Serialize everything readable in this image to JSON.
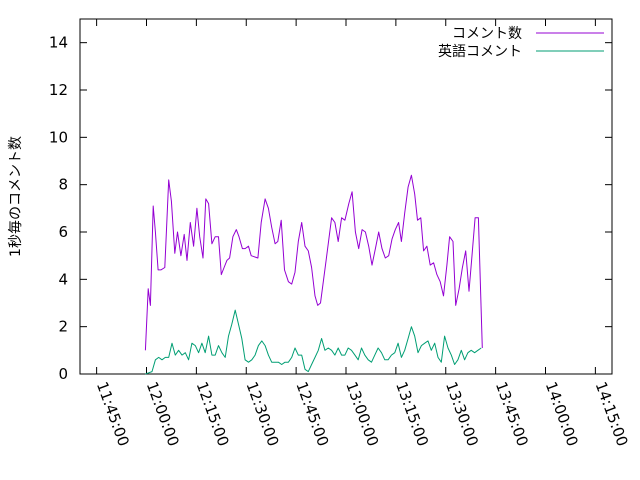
{
  "chart_data": {
    "type": "line",
    "title": "",
    "xlabel": "",
    "ylabel": "1秒毎のコメント数",
    "ylim": [
      0,
      15
    ],
    "yticks": [
      0,
      2,
      4,
      6,
      8,
      10,
      12,
      14
    ],
    "xlim": [
      "11:40:00",
      "14:20:00"
    ],
    "xticks": [
      "11:45:00",
      "12:00:00",
      "12:15:00",
      "12:30:00",
      "12:45:00",
      "13:00:00",
      "13:15:00",
      "13:30:00",
      "13:45:00",
      "14:00:00",
      "14:15:00"
    ],
    "legend_position": "top-right",
    "grid": false,
    "series": [
      {
        "name": "コメント数",
        "color": "#9400d3",
        "points": [
          [
            "11:59:40",
            1.0
          ],
          [
            "12:00:30",
            3.6
          ],
          [
            "12:01:10",
            2.9
          ],
          [
            "12:02:00",
            7.1
          ],
          [
            "12:02:40",
            6.0
          ],
          [
            "12:03:30",
            4.4
          ],
          [
            "12:04:20",
            4.4
          ],
          [
            "12:05:30",
            4.5
          ],
          [
            "12:06:40",
            8.2
          ],
          [
            "12:07:30",
            7.3
          ],
          [
            "12:08:30",
            5.1
          ],
          [
            "12:09:20",
            6.0
          ],
          [
            "12:10:20",
            5.0
          ],
          [
            "12:11:20",
            5.9
          ],
          [
            "12:12:10",
            4.8
          ],
          [
            "12:13:10",
            6.4
          ],
          [
            "12:14:10",
            5.4
          ],
          [
            "12:15:10",
            7.0
          ],
          [
            "12:16:00",
            5.8
          ],
          [
            "12:17:00",
            4.9
          ],
          [
            "12:17:50",
            7.4
          ],
          [
            "12:18:40",
            7.2
          ],
          [
            "12:19:40",
            5.5
          ],
          [
            "12:20:40",
            5.8
          ],
          [
            "12:21:40",
            5.8
          ],
          [
            "12:22:30",
            4.2
          ],
          [
            "12:23:20",
            4.5
          ],
          [
            "12:24:10",
            4.8
          ],
          [
            "12:25:00",
            4.9
          ],
          [
            "12:26:00",
            5.8
          ],
          [
            "12:27:00",
            6.1
          ],
          [
            "12:27:50",
            5.8
          ],
          [
            "12:28:50",
            5.3
          ],
          [
            "12:29:40",
            5.3
          ],
          [
            "12:30:40",
            5.4
          ],
          [
            "12:31:30",
            5.0
          ],
          [
            "12:33:30",
            4.9
          ],
          [
            "12:34:30",
            6.4
          ],
          [
            "12:35:40",
            7.4
          ],
          [
            "12:36:40",
            7.0
          ],
          [
            "12:37:40",
            6.2
          ],
          [
            "12:38:40",
            5.5
          ],
          [
            "12:39:30",
            5.6
          ],
          [
            "12:40:30",
            6.5
          ],
          [
            "12:41:30",
            4.4
          ],
          [
            "12:42:40",
            3.9
          ],
          [
            "12:43:40",
            3.8
          ],
          [
            "12:44:40",
            4.3
          ],
          [
            "12:45:40",
            5.6
          ],
          [
            "12:46:40",
            6.4
          ],
          [
            "12:47:40",
            5.4
          ],
          [
            "12:48:40",
            5.2
          ],
          [
            "12:49:40",
            4.5
          ],
          [
            "12:50:40",
            3.3
          ],
          [
            "12:51:30",
            2.9
          ],
          [
            "12:52:20",
            3.0
          ],
          [
            "12:54:00",
            4.8
          ],
          [
            "12:55:40",
            6.6
          ],
          [
            "12:56:40",
            6.4
          ],
          [
            "12:57:40",
            5.6
          ],
          [
            "12:58:40",
            6.6
          ],
          [
            "12:59:40",
            6.5
          ],
          [
            "13:00:50",
            7.2
          ],
          [
            "13:01:50",
            7.7
          ],
          [
            "13:02:50",
            6.0
          ],
          [
            "13:03:50",
            5.3
          ],
          [
            "13:04:50",
            6.1
          ],
          [
            "13:05:50",
            6.0
          ],
          [
            "13:06:50",
            5.4
          ],
          [
            "13:07:50",
            4.6
          ],
          [
            "13:08:50",
            5.3
          ],
          [
            "13:09:50",
            6.0
          ],
          [
            "13:10:50",
            5.3
          ],
          [
            "13:11:50",
            4.9
          ],
          [
            "13:12:50",
            5.0
          ],
          [
            "13:13:50",
            5.7
          ],
          [
            "13:14:50",
            6.1
          ],
          [
            "13:15:50",
            6.4
          ],
          [
            "13:16:40",
            5.6
          ],
          [
            "13:17:40",
            6.8
          ],
          [
            "13:18:40",
            7.9
          ],
          [
            "13:19:40",
            8.4
          ],
          [
            "13:20:40",
            7.6
          ],
          [
            "13:21:30",
            6.5
          ],
          [
            "13:22:30",
            6.6
          ],
          [
            "13:23:20",
            5.2
          ],
          [
            "13:24:20",
            5.4
          ],
          [
            "13:25:20",
            4.6
          ],
          [
            "13:26:20",
            4.7
          ],
          [
            "13:27:20",
            4.2
          ],
          [
            "13:28:20",
            3.9
          ],
          [
            "13:29:20",
            3.3
          ],
          [
            "13:30:20",
            4.6
          ],
          [
            "13:31:10",
            5.8
          ],
          [
            "13:32:10",
            5.6
          ],
          [
            "13:33:00",
            2.9
          ],
          [
            "13:34:00",
            3.6
          ],
          [
            "13:35:00",
            4.5
          ],
          [
            "13:36:00",
            5.2
          ],
          [
            "13:37:00",
            3.5
          ],
          [
            "13:37:50",
            4.9
          ],
          [
            "13:38:50",
            6.6
          ],
          [
            "13:39:50",
            6.6
          ],
          [
            "13:41:00",
            1.1
          ]
        ]
      },
      {
        "name": "英語コメント",
        "color": "#009e73",
        "points": [
          [
            "11:59:40",
            0.0
          ],
          [
            "12:00:40",
            0.05
          ],
          [
            "12:01:40",
            0.1
          ],
          [
            "12:02:40",
            0.6
          ],
          [
            "12:03:40",
            0.7
          ],
          [
            "12:04:40",
            0.6
          ],
          [
            "12:05:40",
            0.7
          ],
          [
            "12:06:40",
            0.7
          ],
          [
            "12:07:40",
            1.3
          ],
          [
            "12:08:40",
            0.8
          ],
          [
            "12:09:40",
            1.0
          ],
          [
            "12:10:40",
            0.8
          ],
          [
            "12:11:40",
            0.9
          ],
          [
            "12:12:40",
            0.6
          ],
          [
            "12:13:40",
            1.3
          ],
          [
            "12:14:40",
            1.2
          ],
          [
            "12:15:40",
            0.9
          ],
          [
            "12:16:40",
            1.3
          ],
          [
            "12:17:40",
            0.9
          ],
          [
            "12:18:40",
            1.6
          ],
          [
            "12:19:40",
            0.8
          ],
          [
            "12:20:40",
            0.8
          ],
          [
            "12:21:40",
            1.2
          ],
          [
            "12:22:40",
            0.9
          ],
          [
            "12:23:40",
            0.7
          ],
          [
            "12:24:40",
            1.6
          ],
          [
            "12:25:40",
            2.1
          ],
          [
            "12:26:40",
            2.7
          ],
          [
            "12:27:40",
            2.1
          ],
          [
            "12:28:40",
            1.5
          ],
          [
            "12:29:40",
            0.6
          ],
          [
            "12:30:40",
            0.5
          ],
          [
            "12:31:40",
            0.6
          ],
          [
            "12:32:40",
            0.8
          ],
          [
            "12:33:40",
            1.2
          ],
          [
            "12:34:40",
            1.4
          ],
          [
            "12:35:40",
            1.2
          ],
          [
            "12:36:40",
            0.8
          ],
          [
            "12:37:40",
            0.5
          ],
          [
            "12:38:40",
            0.5
          ],
          [
            "12:39:40",
            0.5
          ],
          [
            "12:40:40",
            0.4
          ],
          [
            "12:41:40",
            0.5
          ],
          [
            "12:42:40",
            0.5
          ],
          [
            "12:43:40",
            0.7
          ],
          [
            "12:44:40",
            1.1
          ],
          [
            "12:45:40",
            0.8
          ],
          [
            "12:46:40",
            0.8
          ],
          [
            "12:47:40",
            0.2
          ],
          [
            "12:48:40",
            0.1
          ],
          [
            "12:49:40",
            0.4
          ],
          [
            "12:50:40",
            0.7
          ],
          [
            "12:51:40",
            1.0
          ],
          [
            "12:52:40",
            1.5
          ],
          [
            "12:53:40",
            1.0
          ],
          [
            "12:54:40",
            1.1
          ],
          [
            "12:55:40",
            1.0
          ],
          [
            "12:56:40",
            0.8
          ],
          [
            "12:57:40",
            1.1
          ],
          [
            "12:58:40",
            0.8
          ],
          [
            "12:59:40",
            0.8
          ],
          [
            "13:00:40",
            1.1
          ],
          [
            "13:01:40",
            1.0
          ],
          [
            "13:02:40",
            0.8
          ],
          [
            "13:03:40",
            0.6
          ],
          [
            "13:04:40",
            1.1
          ],
          [
            "13:05:40",
            0.8
          ],
          [
            "13:06:40",
            0.6
          ],
          [
            "13:07:40",
            0.5
          ],
          [
            "13:08:40",
            0.8
          ],
          [
            "13:09:40",
            1.1
          ],
          [
            "13:10:40",
            0.9
          ],
          [
            "13:11:40",
            0.6
          ],
          [
            "13:12:40",
            0.6
          ],
          [
            "13:13:40",
            0.8
          ],
          [
            "13:14:40",
            0.9
          ],
          [
            "13:15:40",
            1.3
          ],
          [
            "13:16:40",
            0.7
          ],
          [
            "13:17:40",
            1.0
          ],
          [
            "13:18:40",
            1.5
          ],
          [
            "13:19:40",
            2.0
          ],
          [
            "13:20:40",
            1.6
          ],
          [
            "13:21:40",
            0.9
          ],
          [
            "13:22:40",
            1.2
          ],
          [
            "13:23:40",
            1.3
          ],
          [
            "13:24:40",
            1.4
          ],
          [
            "13:25:40",
            1.0
          ],
          [
            "13:26:40",
            1.3
          ],
          [
            "13:27:40",
            0.7
          ],
          [
            "13:28:40",
            0.5
          ],
          [
            "13:29:40",
            1.6
          ],
          [
            "13:30:40",
            1.1
          ],
          [
            "13:31:40",
            0.8
          ],
          [
            "13:32:40",
            0.4
          ],
          [
            "13:33:40",
            0.6
          ],
          [
            "13:34:40",
            1.0
          ],
          [
            "13:35:40",
            0.6
          ],
          [
            "13:36:40",
            0.9
          ],
          [
            "13:37:40",
            1.0
          ],
          [
            "13:38:40",
            0.9
          ],
          [
            "13:39:40",
            1.0
          ],
          [
            "13:40:40",
            1.1
          ]
        ]
      }
    ]
  }
}
